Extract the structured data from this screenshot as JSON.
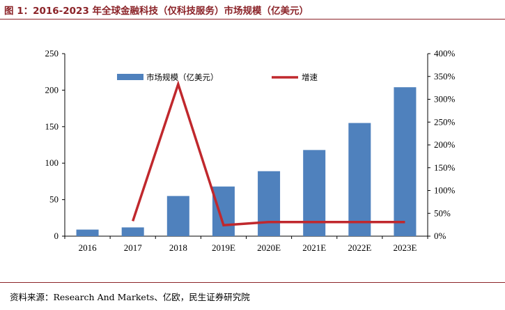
{
  "figure": {
    "title": "图 1：2016-2023 年全球金融科技（仅科技服务）市场规模（亿美元）",
    "source": "资料来源：Research And Markets、亿欧，民生证券研究院"
  },
  "colors": {
    "bar": "#4f81bd",
    "line": "#c0282d",
    "rule": "#8b2328"
  },
  "chart_data": {
    "type": "bar",
    "categories": [
      "2016",
      "2017",
      "2018",
      "2019E",
      "2020E",
      "2021E",
      "2022E",
      "2023E"
    ],
    "series": [
      {
        "name": "市场规模（亿美元）",
        "type": "bar",
        "axis": "left",
        "values": [
          9,
          12,
          55,
          68,
          89,
          118,
          155,
          204
        ]
      },
      {
        "name": "增速",
        "type": "line",
        "axis": "right",
        "values": [
          null,
          33,
          333,
          24,
          31,
          31,
          31,
          31
        ]
      }
    ],
    "y_left": {
      "min": 0,
      "max": 250,
      "ticks": [
        "0",
        "50",
        "100",
        "150",
        "200",
        "250"
      ]
    },
    "y_right": {
      "min": 0,
      "max": 400,
      "unit": "%",
      "ticks": [
        "0%",
        "50%",
        "100%",
        "150%",
        "200%",
        "250%",
        "300%",
        "350%",
        "400%"
      ]
    },
    "grid": false,
    "legend_position": "top-inside"
  }
}
